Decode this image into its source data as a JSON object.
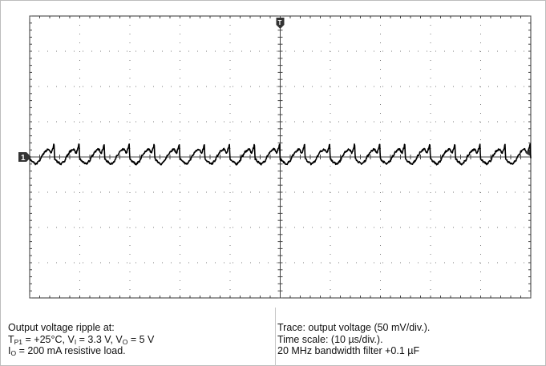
{
  "chart_data": {
    "type": "line",
    "title": "",
    "xlabel": "",
    "ylabel": "",
    "grid": true,
    "x_divisions": 10,
    "y_divisions": 8,
    "x_units_per_div": "10 µs",
    "y_units_per_div": "50 mV",
    "xlim": [
      0,
      100
    ],
    "ylim": [
      -200,
      200
    ],
    "channel_marker": "1",
    "trigger_marker": "T",
    "series": [
      {
        "name": "",
        "period_us": 5.0,
        "shape_points": [
          [
            0.0,
            -3
          ],
          [
            0.12,
            -7
          ],
          [
            0.25,
            -10
          ],
          [
            0.38,
            -6
          ],
          [
            0.5,
            2
          ],
          [
            0.62,
            8
          ],
          [
            0.75,
            11
          ],
          [
            0.86,
            6
          ],
          [
            0.93,
            12
          ],
          [
            0.97,
            18
          ],
          [
            1.0,
            -3
          ]
        ],
        "noise_mv": 1.2
      }
    ]
  },
  "caption": {
    "left": {
      "line1": "Output voltage ripple at:",
      "l2_T": "T",
      "l2_Tsub": "P1",
      "l2_a": " = +25°C, V",
      "l2_Vsub1": "I",
      "l2_b": " = 3.3 V, V",
      "l2_Vsub2": "O",
      "l2_c": " = 5 V",
      "l3_I": "I",
      "l3_Isub": "O",
      "l3_rest": " = 200 mA resistive load."
    },
    "right": {
      "line1": "Trace: output voltage (50 mV/div.).",
      "line2": "Time scale: (10 µs/div.).",
      "line3": "20 MHz bandwidth filter +0.1 µF"
    }
  },
  "colors": {
    "trace": "#000000",
    "grid": "#7a7a7a",
    "axis": "#444444",
    "marker": "#333333",
    "background": "#ffffff"
  }
}
